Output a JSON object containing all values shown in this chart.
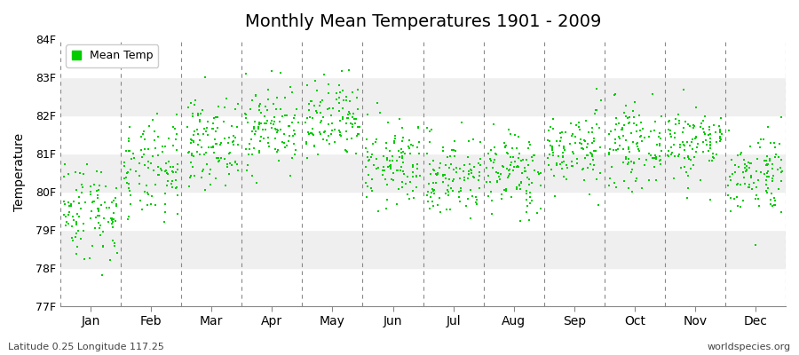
{
  "title": "Monthly Mean Temperatures 1901 - 2009",
  "ylabel": "Temperature",
  "xlabel": "",
  "bottom_left_text": "Latitude 0.25 Longitude 117.25",
  "bottom_right_text": "worldspecies.org",
  "dot_color": "#00cc00",
  "background_color": "#ffffff",
  "band_colors": [
    "#ffffff",
    "#efefef"
  ],
  "ylim": [
    77,
    84
  ],
  "yticks": [
    77,
    78,
    79,
    80,
    81,
    82,
    83,
    84
  ],
  "ytick_labels": [
    "77F",
    "78F",
    "79F",
    "80F",
    "81F",
    "82F",
    "83F",
    "84F"
  ],
  "months": [
    "Jan",
    "Feb",
    "Mar",
    "Apr",
    "May",
    "Jun",
    "Jul",
    "Aug",
    "Sep",
    "Oct",
    "Nov",
    "Dec"
  ],
  "n_years": 109,
  "seed": 42,
  "monthly_means": [
    79.5,
    80.5,
    81.3,
    81.7,
    81.8,
    80.7,
    80.4,
    80.5,
    81.1,
    81.2,
    81.3,
    80.5
  ],
  "monthly_stds": [
    0.65,
    0.65,
    0.55,
    0.55,
    0.55,
    0.55,
    0.55,
    0.55,
    0.5,
    0.5,
    0.5,
    0.55
  ]
}
